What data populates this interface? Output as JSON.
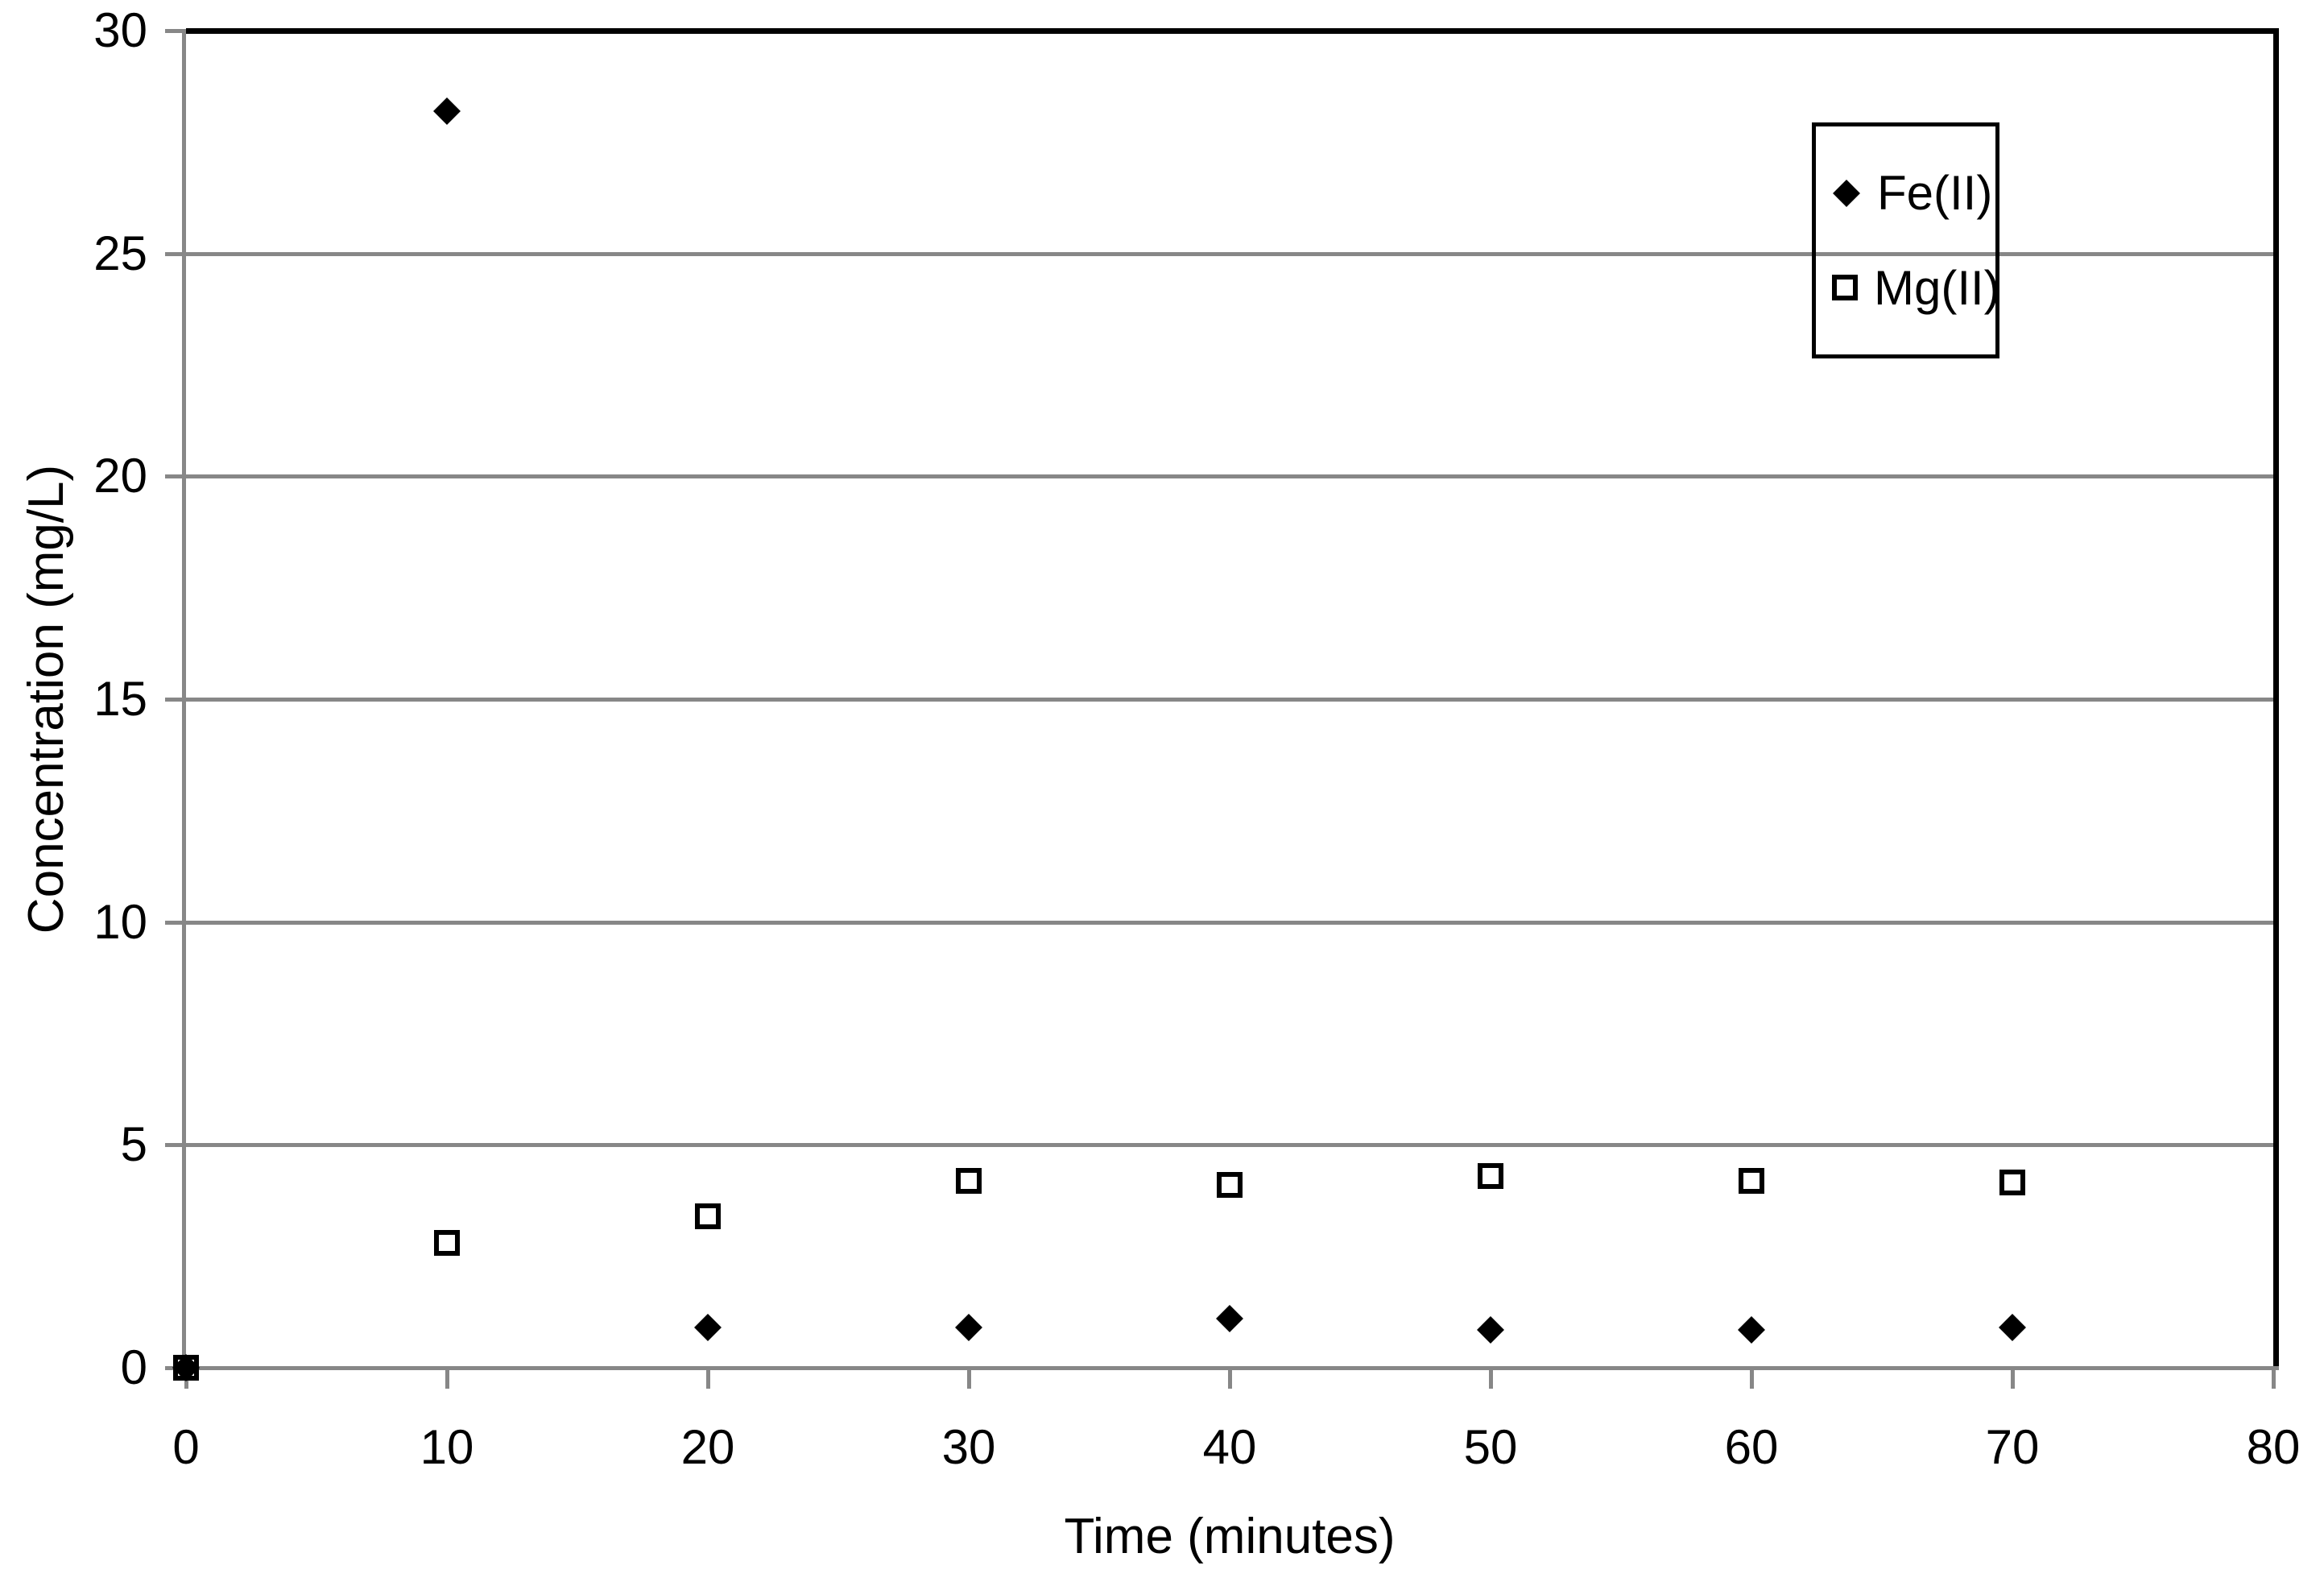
{
  "chart_data": {
    "type": "scatter",
    "title": "",
    "xlabel": "Time (minutes)",
    "ylabel": "Concentration (mg/L)",
    "xlim": [
      0,
      80
    ],
    "ylim": [
      0,
      30
    ],
    "x_ticks": [
      0,
      10,
      20,
      30,
      40,
      50,
      60,
      70,
      80
    ],
    "y_ticks": [
      0,
      5,
      10,
      15,
      20,
      25,
      30
    ],
    "grid": "horizontal-gridlines",
    "legend_position": "inside-top-right",
    "colors": {
      "gridline": "#878787",
      "axis": "#878787",
      "plot_border": "#000000",
      "marker": "#000000",
      "text": "#000000",
      "background": "#ffffff"
    },
    "series": [
      {
        "name": "Fe(II)",
        "marker": "filled-diamond",
        "x": [
          0,
          10,
          20,
          30,
          40,
          50,
          60,
          70
        ],
        "y": [
          0,
          28.2,
          0.9,
          0.9,
          1.1,
          0.85,
          0.85,
          0.9
        ]
      },
      {
        "name": "Mg(II)",
        "marker": "open-square",
        "x": [
          0,
          10,
          20,
          30,
          40,
          50,
          60,
          70
        ],
        "y": [
          0,
          2.8,
          3.4,
          4.2,
          4.1,
          4.3,
          4.2,
          4.15
        ]
      }
    ]
  }
}
